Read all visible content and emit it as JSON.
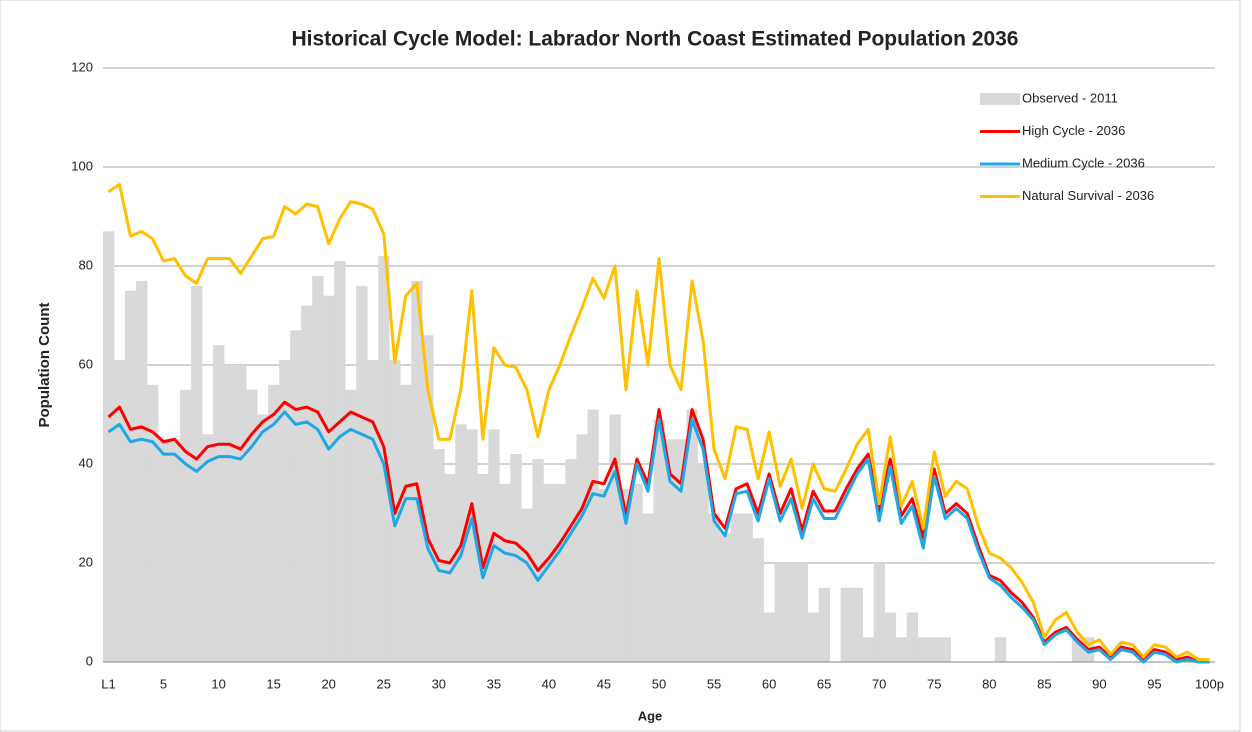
{
  "chart_data": {
    "type": "combo",
    "title": "Historical Cycle Model: Labrador North Coast Estimated Population 2036",
    "x_label": "Age",
    "y_label": "Population Count",
    "categories": [
      "L1",
      null,
      null,
      null,
      null,
      "5",
      null,
      null,
      null,
      null,
      "10",
      null,
      null,
      null,
      null,
      "15",
      null,
      null,
      null,
      null,
      "20",
      null,
      null,
      null,
      null,
      "25",
      null,
      null,
      null,
      null,
      "30",
      null,
      null,
      null,
      null,
      "35",
      null,
      null,
      null,
      null,
      "40",
      null,
      null,
      null,
      null,
      "45",
      null,
      null,
      null,
      null,
      "50",
      null,
      null,
      null,
      null,
      "55",
      null,
      null,
      null,
      null,
      "60",
      null,
      null,
      null,
      null,
      "65",
      null,
      null,
      null,
      null,
      "70",
      null,
      null,
      null,
      null,
      "75",
      null,
      null,
      null,
      null,
      "80",
      null,
      null,
      null,
      null,
      "85",
      null,
      null,
      null,
      null,
      "90",
      null,
      null,
      null,
      null,
      "95",
      null,
      null,
      null,
      null,
      "100p"
    ],
    "ylim": [
      0,
      120
    ],
    "yticks": [
      0,
      20,
      40,
      60,
      80,
      100,
      120
    ],
    "grid": true,
    "legend": "top-right",
    "series": [
      {
        "name": "Observed - 2011",
        "type": "bar",
        "color": "#d9d9d9",
        "values": [
          87,
          61,
          75,
          77,
          56,
          45,
          45,
          55,
          76,
          46,
          64,
          60,
          60,
          55,
          50,
          56,
          61,
          67,
          72,
          78,
          74,
          81,
          55,
          76,
          61,
          82,
          61,
          56,
          77,
          66,
          43,
          38,
          48,
          47,
          38,
          47,
          36,
          42,
          31,
          41,
          36,
          36,
          41,
          46,
          51,
          35,
          50,
          35,
          36,
          30,
          49,
          45,
          45,
          51,
          40,
          30,
          26,
          30,
          30,
          25,
          10,
          20,
          20,
          20,
          10,
          15,
          0,
          15,
          15,
          5,
          20,
          10,
          5,
          10,
          5,
          5,
          5,
          0,
          0,
          0,
          0,
          5,
          0,
          0,
          0,
          0,
          0,
          0,
          5,
          5,
          0,
          0,
          0,
          0,
          0,
          0,
          0,
          0,
          0,
          0,
          0
        ]
      },
      {
        "name": "High Cycle - 2036",
        "type": "line",
        "color": "#ff0000",
        "values": [
          49.5,
          51.5,
          47,
          47.5,
          46.5,
          44.5,
          45,
          42.5,
          41,
          43.5,
          44,
          44,
          43,
          46,
          48.5,
          50,
          52.5,
          51,
          51.5,
          50.5,
          46.5,
          48.5,
          50.5,
          49.5,
          48.5,
          43.5,
          30,
          35.5,
          36,
          25,
          20.5,
          20,
          23.5,
          32,
          19,
          26,
          24.5,
          24,
          22,
          18.5,
          21,
          24,
          27.5,
          31,
          36.5,
          36,
          41,
          29.5,
          41,
          36,
          51,
          38,
          36,
          51,
          45,
          30,
          27,
          35,
          36,
          30,
          38,
          30,
          35,
          26.5,
          34.5,
          30.5,
          30.5,
          35,
          39,
          42,
          30.5,
          41,
          29.5,
          33,
          25,
          39,
          30,
          32,
          30,
          23.5,
          17.5,
          16.5,
          14,
          12,
          9,
          4,
          6,
          7,
          4.5,
          2.5,
          3,
          1,
          3,
          2.5,
          0.5,
          2.5,
          2,
          0.5,
          1,
          0,
          0
        ]
      },
      {
        "name": "Medium Cycle - 2036",
        "type": "line",
        "color": "#1fa8e6",
        "values": [
          46.5,
          48,
          44.5,
          45,
          44.5,
          42,
          42,
          40,
          38.5,
          40.5,
          41.5,
          41.5,
          41,
          43.5,
          46.5,
          48,
          50.5,
          48,
          48.5,
          47,
          43,
          45.5,
          47,
          46,
          45,
          40,
          27.5,
          33,
          33,
          23,
          18.5,
          18,
          21.5,
          29,
          17,
          23.5,
          22,
          21.5,
          20,
          16.5,
          19.5,
          22.5,
          26,
          29.5,
          34,
          33.5,
          38.5,
          28,
          40,
          34.5,
          49,
          36.5,
          34.5,
          49,
          43,
          28.5,
          25.5,
          34,
          34.5,
          28.5,
          37,
          28.5,
          33,
          25,
          33,
          29,
          29,
          33.5,
          38,
          41,
          28.5,
          39.5,
          28,
          31.5,
          23,
          37.5,
          29,
          31,
          29,
          22.5,
          17,
          15.5,
          13,
          11,
          8.5,
          3.5,
          5.5,
          6.5,
          4,
          2,
          2.5,
          0.5,
          2.5,
          2,
          0,
          2,
          1.5,
          0,
          0.5,
          0,
          0
        ]
      },
      {
        "name": "Natural Survival - 2036",
        "type": "line",
        "color": "#ffc000",
        "values": [
          95,
          96.5,
          86,
          87,
          85.5,
          81,
          81.5,
          78,
          76.5,
          81.5,
          81.5,
          81.5,
          78.5,
          82,
          85.5,
          86,
          92,
          90.5,
          92.5,
          92,
          84.5,
          89.5,
          93,
          92.5,
          91.5,
          86.5,
          60.5,
          74,
          76.5,
          55,
          45,
          45,
          55,
          75,
          45,
          63.5,
          60,
          59.5,
          55,
          45.5,
          55,
          60,
          66,
          71.5,
          77.5,
          73.5,
          80,
          55,
          75,
          60,
          81.5,
          60,
          55,
          77,
          65,
          43,
          37,
          47.5,
          47,
          37,
          46.5,
          35.5,
          41,
          31,
          40,
          35,
          34.5,
          39,
          44,
          47,
          32,
          45.5,
          31.5,
          36.5,
          27,
          42.5,
          33.5,
          36.5,
          35,
          27.5,
          22,
          21,
          19,
          16,
          12,
          5,
          8.5,
          10,
          6,
          3.5,
          4.5,
          1.5,
          4,
          3.5,
          1,
          3.5,
          3,
          1,
          2,
          0.5,
          0.5
        ]
      }
    ]
  }
}
